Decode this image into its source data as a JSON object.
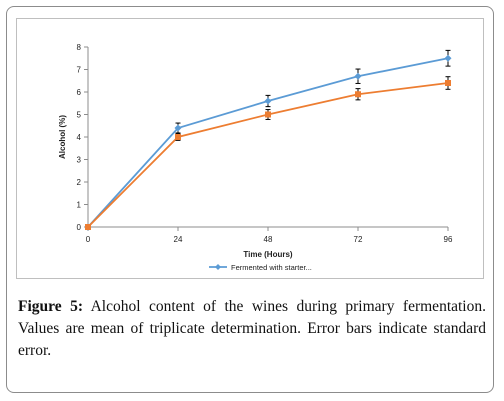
{
  "chart_data": {
    "type": "line",
    "x": [
      0,
      24,
      48,
      72,
      96
    ],
    "xticks": [
      "0",
      "24",
      "48",
      "72",
      "96"
    ],
    "yticks": [
      "0",
      "1",
      "2",
      "3",
      "4",
      "5",
      "6",
      "7",
      "8"
    ],
    "xlabel": "Time (Hours)",
    "ylabel": "Alcohol (%)",
    "ylim": [
      0,
      8
    ],
    "grid": false,
    "legend_position": "bottom",
    "series": [
      {
        "name": "Fermented with starter...",
        "color": "#5b9bd5",
        "marker": "diamond",
        "values": [
          0,
          4.4,
          5.6,
          6.7,
          7.5
        ],
        "errors": [
          0,
          0.22,
          0.25,
          0.32,
          0.35
        ],
        "in_legend": true
      },
      {
        "name": "",
        "color": "#ed7d31",
        "marker": "square",
        "values": [
          0,
          4.0,
          5.0,
          5.9,
          6.4
        ],
        "errors": [
          0,
          0.15,
          0.22,
          0.25,
          0.28
        ],
        "in_legend": false
      }
    ]
  },
  "caption": {
    "label": "Figure 5:",
    "text": " Alcohol content of the wines during primary fermentation. Values are mean of triplicate determination. Error bars indicate standard error."
  }
}
